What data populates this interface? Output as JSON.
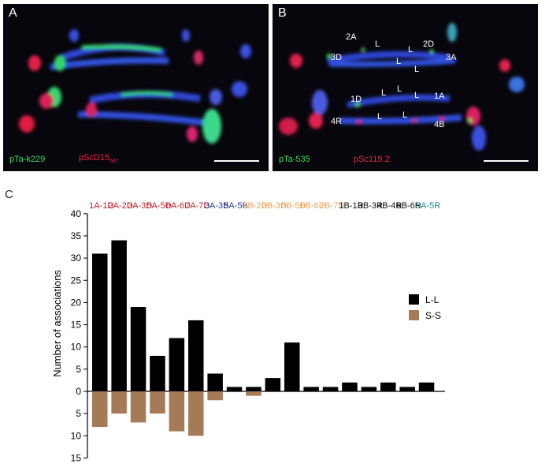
{
  "panel_a": {
    "letter": "A",
    "probe_green": "pTa-k229",
    "probe_red": "pScD15",
    "probe_red_sub": "587"
  },
  "panel_b": {
    "letter": "B",
    "probe_green": "pTa-535",
    "probe_red": "pSc119.2",
    "labels": [
      "2A",
      "L",
      "2D",
      "3D",
      "L",
      "L",
      "3A",
      "L",
      "L",
      "1D",
      "L",
      "L",
      "1A",
      "4R",
      "L",
      "L",
      "4B"
    ]
  },
  "colors": {
    "green_probe": "#3ddc5c",
    "red_probe": "#e8244a",
    "ll_bar": "#000000",
    "ss_bar": "#a57a57",
    "cat_red": "#c0272d",
    "cat_blue": "#2b3a8f",
    "cat_orange": "#e9a35a",
    "cat_black": "#111111",
    "cat_teal": "#1b8f8a"
  },
  "chart_data": {
    "panel_letter": "C",
    "type": "bar",
    "ylabel": "Number of associations",
    "categories": [
      "1A-1D",
      "2A-2D",
      "3A-3D",
      "5A-5D",
      "6A-6D",
      "7A-7D",
      "3A-3B",
      "5A-5B",
      "2B-2D",
      "3B-3D",
      "5B-5D",
      "6B-6D",
      "7B-7D",
      "1B-1R",
      "3B-3R",
      "4B-4R",
      "6B-6R",
      "5A-5R"
    ],
    "category_colors": [
      "cat_red",
      "cat_red",
      "cat_red",
      "cat_red",
      "cat_red",
      "cat_red",
      "cat_blue",
      "cat_blue",
      "cat_orange",
      "cat_orange",
      "cat_orange",
      "cat_orange",
      "cat_orange",
      "cat_black",
      "cat_black",
      "cat_black",
      "cat_black",
      "cat_teal"
    ],
    "series": [
      {
        "name": "L-L",
        "values": [
          31,
          34,
          19,
          8,
          12,
          16,
          4,
          1,
          1,
          3,
          11,
          1,
          1,
          2,
          1,
          2,
          1,
          2
        ]
      },
      {
        "name": "S-S",
        "values": [
          8,
          5,
          7,
          5,
          9,
          10,
          2,
          0,
          1,
          0,
          0,
          0,
          0,
          0,
          0,
          0,
          0,
          0
        ]
      }
    ],
    "y_ticks_up": [
      0,
      5,
      10,
      15,
      20,
      25,
      30,
      35,
      40
    ],
    "y_ticks_down": [
      5,
      10,
      15
    ],
    "ylim": [
      -15,
      40
    ],
    "legend": "right"
  }
}
